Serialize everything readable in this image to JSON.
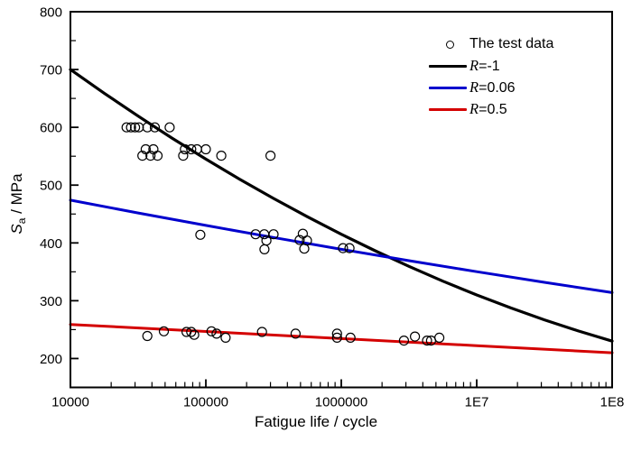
{
  "page": {
    "background": "#ffffff"
  },
  "chart_data": {
    "type": "scatter+line",
    "title": "",
    "xlabel": "Fatigue life / cycle",
    "ylabel": {
      "italic": "S",
      "sub": "a",
      "rest": " / MPa"
    },
    "x_scale": "log",
    "xlim": [
      10000,
      100000000
    ],
    "ylim": [
      150,
      800
    ],
    "grid": false,
    "frame_color": "#000000",
    "x_ticks": [
      {
        "v": 10000,
        "label": "10000"
      },
      {
        "v": 100000,
        "label": "100000"
      },
      {
        "v": 1000000,
        "label": "1000000"
      },
      {
        "v": 10000000,
        "label": "1E7"
      },
      {
        "v": 100000000,
        "label": "1E8"
      }
    ],
    "y_ticks": [
      {
        "v": 200,
        "label": "200"
      },
      {
        "v": 300,
        "label": "300"
      },
      {
        "v": 400,
        "label": "400"
      },
      {
        "v": 500,
        "label": "500"
      },
      {
        "v": 600,
        "label": "600"
      },
      {
        "v": 700,
        "label": "700"
      },
      {
        "v": 800,
        "label": "800"
      }
    ],
    "y_minor": [
      250,
      350,
      450,
      550,
      650,
      750
    ],
    "legend": {
      "position": "top-right",
      "entries": [
        {
          "kind": "marker",
          "label": "The test data"
        },
        {
          "kind": "line",
          "color": "#000000",
          "symbol": "R",
          "value": "=-1"
        },
        {
          "kind": "line",
          "color": "#0000cd",
          "symbol": "R",
          "value": "=0.06"
        },
        {
          "kind": "line",
          "color": "#d40000",
          "symbol": "R",
          "value": "=0.5"
        }
      ]
    },
    "scatter": {
      "name": "The test data",
      "marker": "open-circle",
      "color": "#000000",
      "points": [
        [
          26000,
          600
        ],
        [
          28000,
          600
        ],
        [
          30000,
          600
        ],
        [
          32000,
          600
        ],
        [
          37000,
          600
        ],
        [
          42000,
          600
        ],
        [
          54000,
          600
        ],
        [
          36000,
          562
        ],
        [
          41000,
          562
        ],
        [
          70000,
          562
        ],
        [
          78000,
          562
        ],
        [
          86000,
          562
        ],
        [
          100000,
          562
        ],
        [
          34000,
          551
        ],
        [
          39000,
          551
        ],
        [
          44000,
          551
        ],
        [
          68000,
          551
        ],
        [
          130000,
          551
        ],
        [
          300000,
          551
        ],
        [
          91000,
          414
        ],
        [
          233000,
          415
        ],
        [
          270000,
          415
        ],
        [
          316000,
          415
        ],
        [
          280000,
          404
        ],
        [
          271000,
          389
        ],
        [
          520000,
          416
        ],
        [
          493000,
          405
        ],
        [
          558000,
          404
        ],
        [
          533000,
          390
        ],
        [
          1030000,
          391
        ],
        [
          1150000,
          391
        ],
        [
          37000,
          239
        ],
        [
          49000,
          247
        ],
        [
          72000,
          246
        ],
        [
          78000,
          246
        ],
        [
          82000,
          241
        ],
        [
          110000,
          247
        ],
        [
          120000,
          243
        ],
        [
          140000,
          236
        ],
        [
          260000,
          246
        ],
        [
          460000,
          243
        ],
        [
          930000,
          243
        ],
        [
          930000,
          236
        ],
        [
          1170000,
          236
        ],
        [
          2900000,
          231
        ],
        [
          3500000,
          238
        ],
        [
          4300000,
          231
        ],
        [
          4600000,
          231
        ],
        [
          5300000,
          236
        ]
      ]
    },
    "series": [
      {
        "id": "r-neg1",
        "name": "R=-1",
        "color": "#000000",
        "width": 3.2,
        "log_points": [
          [
            4.0,
            700
          ],
          [
            4.25,
            658.9
          ],
          [
            4.5,
            619.4
          ],
          [
            4.75,
            581.4
          ],
          [
            5.0,
            545
          ],
          [
            5.25,
            510.2
          ],
          [
            5.5,
            476.9
          ],
          [
            5.75,
            445.2
          ],
          [
            6.0,
            415
          ],
          [
            6.25,
            386.4
          ],
          [
            6.5,
            359.4
          ],
          [
            6.75,
            333.9
          ],
          [
            7.0,
            310
          ],
          [
            7.25,
            287.7
          ],
          [
            7.5,
            266.9
          ],
          [
            7.75,
            247.7
          ],
          [
            8.0,
            230
          ]
        ]
      },
      {
        "id": "r-006",
        "name": "R=0.06",
        "color": "#0000cd",
        "width": 3,
        "log_points": [
          [
            4.0,
            474
          ],
          [
            4.5,
            451.8
          ],
          [
            5.0,
            430.3
          ],
          [
            5.5,
            409.3
          ],
          [
            6.0,
            389
          ],
          [
            6.5,
            369.3
          ],
          [
            7.0,
            350.3
          ],
          [
            7.5,
            331.8
          ],
          [
            8.0,
            314
          ]
        ]
      },
      {
        "id": "r-05",
        "name": "R=0.5",
        "color": "#d40000",
        "width": 3,
        "log_points": [
          [
            4.0,
            259
          ],
          [
            5.0,
            246.8
          ],
          [
            6.0,
            234.5
          ],
          [
            7.0,
            222.3
          ],
          [
            8.0,
            210
          ]
        ]
      }
    ]
  }
}
